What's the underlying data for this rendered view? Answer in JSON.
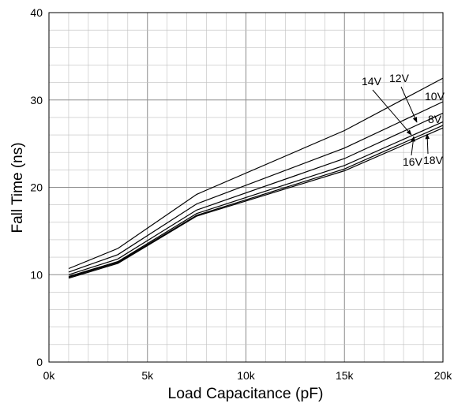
{
  "chart_data": {
    "type": "line",
    "title": "",
    "xlabel": "Load Capacitance (pF)",
    "ylabel": "Fall Time (ns)",
    "xlim": [
      0,
      20000
    ],
    "ylim": [
      0,
      40
    ],
    "grid": true,
    "x_tick_values": [
      0,
      5000,
      10000,
      15000,
      20000
    ],
    "x_tick_labels": [
      "0k",
      "5k",
      "10k",
      "15k",
      "20k"
    ],
    "y_tick_values": [
      0,
      10,
      20,
      30,
      40
    ],
    "y_tick_labels": [
      "0",
      "10",
      "20",
      "30",
      "40"
    ],
    "x": [
      1000,
      3500,
      7500,
      15000,
      20000
    ],
    "series": [
      {
        "name": "8V",
        "values": [
          10.7,
          13.0,
          19.2,
          26.5,
          32.5
        ]
      },
      {
        "name": "10V",
        "values": [
          10.3,
          12.3,
          18.1,
          24.5,
          29.8
        ]
      },
      {
        "name": "12V",
        "values": [
          10.0,
          11.8,
          17.4,
          23.3,
          28.5
        ]
      },
      {
        "name": "14V",
        "values": [
          9.8,
          11.5,
          17.0,
          22.5,
          27.5
        ]
      },
      {
        "name": "16V",
        "values": [
          9.7,
          11.4,
          16.8,
          22.1,
          27.1
        ]
      },
      {
        "name": "18V",
        "values": [
          9.6,
          11.3,
          16.7,
          21.9,
          26.8
        ]
      }
    ],
    "line_color": "#000000",
    "grid_color": "#bfbfbf"
  }
}
